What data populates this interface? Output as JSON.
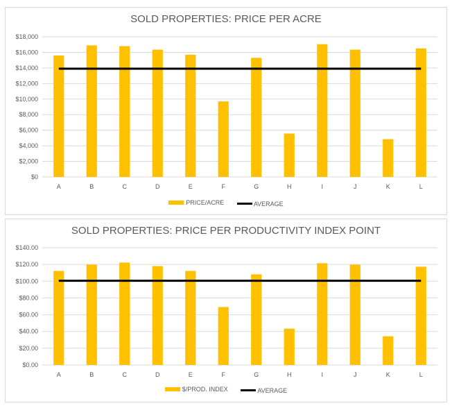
{
  "chart_data": [
    {
      "type": "bar",
      "title": "SOLD PROPERTIES: PRICE PER ACRE",
      "xlabel": "",
      "ylabel": "",
      "categories": [
        "A",
        "B",
        "C",
        "D",
        "E",
        "F",
        "G",
        "H",
        "I",
        "J",
        "K",
        "L"
      ],
      "series": [
        {
          "name": "PRICE/ACRE",
          "type": "bar",
          "color": "#ffc000",
          "values": [
            15600,
            16900,
            16800,
            16350,
            15700,
            9700,
            15300,
            5570,
            17050,
            16350,
            4850,
            16500
          ]
        },
        {
          "name": "AVERAGE",
          "type": "line",
          "color": "#000000",
          "values": [
            13900,
            13900,
            13900,
            13900,
            13900,
            13900,
            13900,
            13900,
            13900,
            13900,
            13900,
            13900
          ]
        }
      ],
      "ylim": [
        0,
        18000
      ],
      "yticks": [
        0,
        2000,
        4000,
        6000,
        8000,
        10000,
        12000,
        14000,
        16000,
        18000
      ],
      "ytick_labels": [
        "$0",
        "$2,000",
        "$4,000",
        "$6,000",
        "$8,000",
        "$10,000",
        "$12,000",
        "$14,000",
        "$16,000",
        "$18,000"
      ],
      "grid": true,
      "legend": "bottom"
    },
    {
      "type": "bar",
      "title": "SOLD PROPERTIES: PRICE PER PRODUCTIVITY INDEX  POINT",
      "xlabel": "",
      "ylabel": "",
      "categories": [
        "A",
        "B",
        "C",
        "D",
        "E",
        "F",
        "G",
        "H",
        "I",
        "J",
        "K",
        "L"
      ],
      "series": [
        {
          "name": "$/PROD. INDEX",
          "type": "bar",
          "color": "#ffc000",
          "values": [
            112.3,
            119.8,
            122.3,
            118.1,
            112.3,
            69.2,
            108.2,
            43.4,
            121.5,
            119.8,
            34.3,
            117.3
          ]
        },
        {
          "name": "AVERAGE",
          "type": "line",
          "color": "#000000",
          "values": [
            100.5,
            100.5,
            100.5,
            100.5,
            100.5,
            100.5,
            100.5,
            100.5,
            100.5,
            100.5,
            100.5,
            100.5
          ]
        }
      ],
      "ylim": [
        0,
        140
      ],
      "yticks": [
        0,
        20,
        40,
        60,
        80,
        100,
        120,
        140
      ],
      "ytick_labels": [
        "$0.00",
        "$20.00",
        "$40.00",
        "$60.00",
        "$80.00",
        "$100.00",
        "$120.00",
        "$140.00"
      ],
      "grid": true,
      "legend": "bottom"
    }
  ]
}
